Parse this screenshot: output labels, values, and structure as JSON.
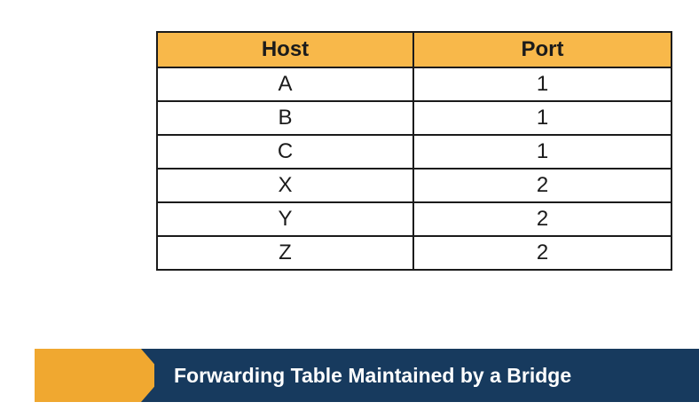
{
  "table": {
    "headers": {
      "host": "Host",
      "port": "Port"
    },
    "rows": [
      {
        "host": "A",
        "port": "1"
      },
      {
        "host": "B",
        "port": "1"
      },
      {
        "host": "C",
        "port": "1"
      },
      {
        "host": "X",
        "port": "2"
      },
      {
        "host": "Y",
        "port": "2"
      },
      {
        "host": "Z",
        "port": "2"
      }
    ]
  },
  "caption": {
    "title": "Forwarding Table Maintained by a Bridge"
  },
  "colors": {
    "header_bg": "#f8b84a",
    "caption_bg": "#173a5e",
    "accent": "#f0a830",
    "border": "#1b1b1b"
  },
  "icons": {
    "caption_marker": "chevron-right-icon"
  }
}
